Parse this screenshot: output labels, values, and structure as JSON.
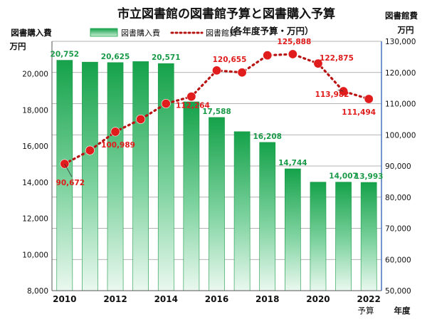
{
  "chart_data": {
    "type": "bar+line",
    "title": "市立図書館の図書館予算と図書購入予算",
    "subtitle": "（各年度予算・万円）",
    "left_axis_title": "図書購入費",
    "left_axis_unit": "万円",
    "right_axis_title": "図書館費",
    "right_axis_unit": "万円",
    "x_axis_title": "年度",
    "x_tick_labels": [
      "2010",
      "2012",
      "2014",
      "2016",
      "2018",
      "2020",
      "2022"
    ],
    "x_last_note": "予算",
    "legend": {
      "bar": "図書購入費",
      "line": "図書館費",
      "placement": "top"
    },
    "years": [
      2010,
      2011,
      2012,
      2013,
      2014,
      2015,
      2016,
      2017,
      2018,
      2019,
      2020,
      2021,
      2022
    ],
    "bar_series": {
      "name": "図書購入費",
      "color": "#1aa34a",
      "values": [
        20752,
        20650,
        20625,
        20680,
        20571,
        18450,
        17588,
        16800,
        16208,
        14744,
        14007,
        14007,
        13993
      ],
      "labels": [
        "20,752",
        "",
        "20,625",
        "",
        "20,571",
        "",
        "17,588",
        "",
        "16,208",
        "14,744",
        "",
        "14,007",
        "13,993"
      ]
    },
    "line_series": {
      "name": "図書館費",
      "color": "#e02020",
      "values": [
        90672,
        95000,
        100989,
        105000,
        110000,
        112264,
        120655,
        120000,
        125500,
        125888,
        122875,
        113982,
        111494
      ],
      "labels": [
        "90,672",
        "",
        "100,989",
        "",
        "",
        "112,264",
        "120,655",
        "",
        "",
        "125,888",
        "122,875",
        "113,982",
        "111,494"
      ]
    },
    "left_axis": {
      "min": 8000,
      "max": 21800,
      "ticks": [
        "8,000",
        "10,000",
        "12,000",
        "14,000",
        "16,000",
        "18,000",
        "20,000"
      ],
      "tick_values": [
        8000,
        10000,
        12000,
        14000,
        16000,
        18000,
        20000
      ]
    },
    "right_axis": {
      "min": 50000,
      "max": 130000,
      "ticks": [
        "50,000",
        "60,000",
        "70,000",
        "80,000",
        "90,000",
        "100,000",
        "110,000",
        "120,000",
        "130,000"
      ],
      "tick_values": [
        50000,
        60000,
        70000,
        80000,
        90000,
        100000,
        110000,
        120000,
        130000
      ]
    },
    "grid": true
  }
}
